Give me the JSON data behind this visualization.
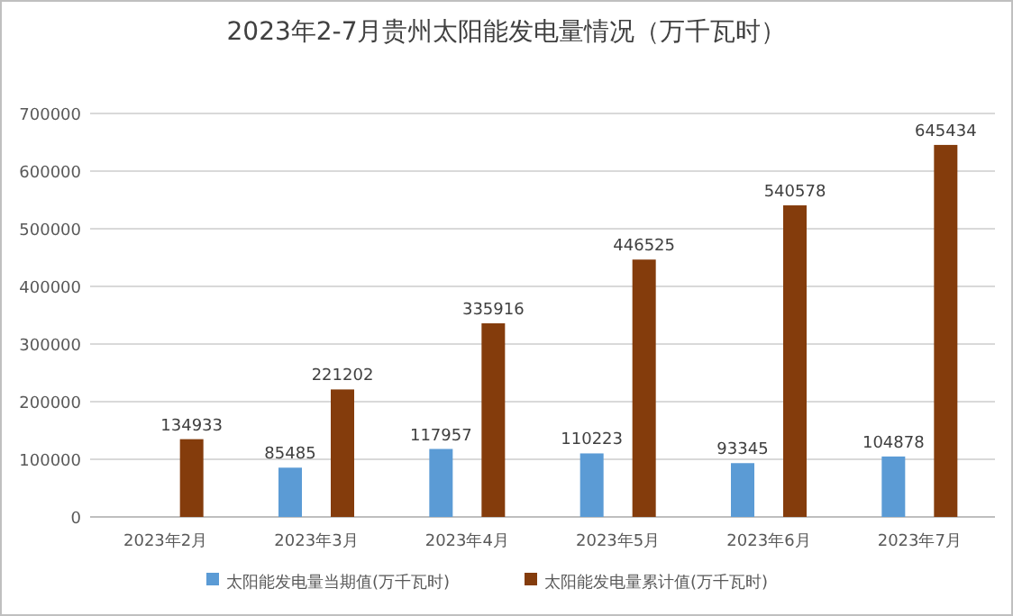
{
  "chart_data": {
    "type": "bar",
    "title": "2023年2-7月贵州太阳能发电量情况（万千瓦时）",
    "categories": [
      "2023年2月",
      "2023年3月",
      "2023年4月",
      "2023年5月",
      "2023年6月",
      "2023年7月"
    ],
    "series": [
      {
        "name": "太阳能发电量当期值(万千瓦时)",
        "color": "#5b9bd5",
        "values": [
          null,
          85485,
          117957,
          110223,
          93345,
          104878
        ]
      },
      {
        "name": "太阳能发电量累计值(万千瓦时)",
        "color": "#843c0c",
        "values": [
          134933,
          221202,
          335916,
          446525,
          540578,
          645434
        ]
      }
    ],
    "ylim": [
      0,
      700000
    ],
    "yticks": [
      0,
      100000,
      200000,
      300000,
      400000,
      500000,
      600000,
      700000
    ],
    "grid": "y",
    "legend": "bottom",
    "data_labels": true
  }
}
